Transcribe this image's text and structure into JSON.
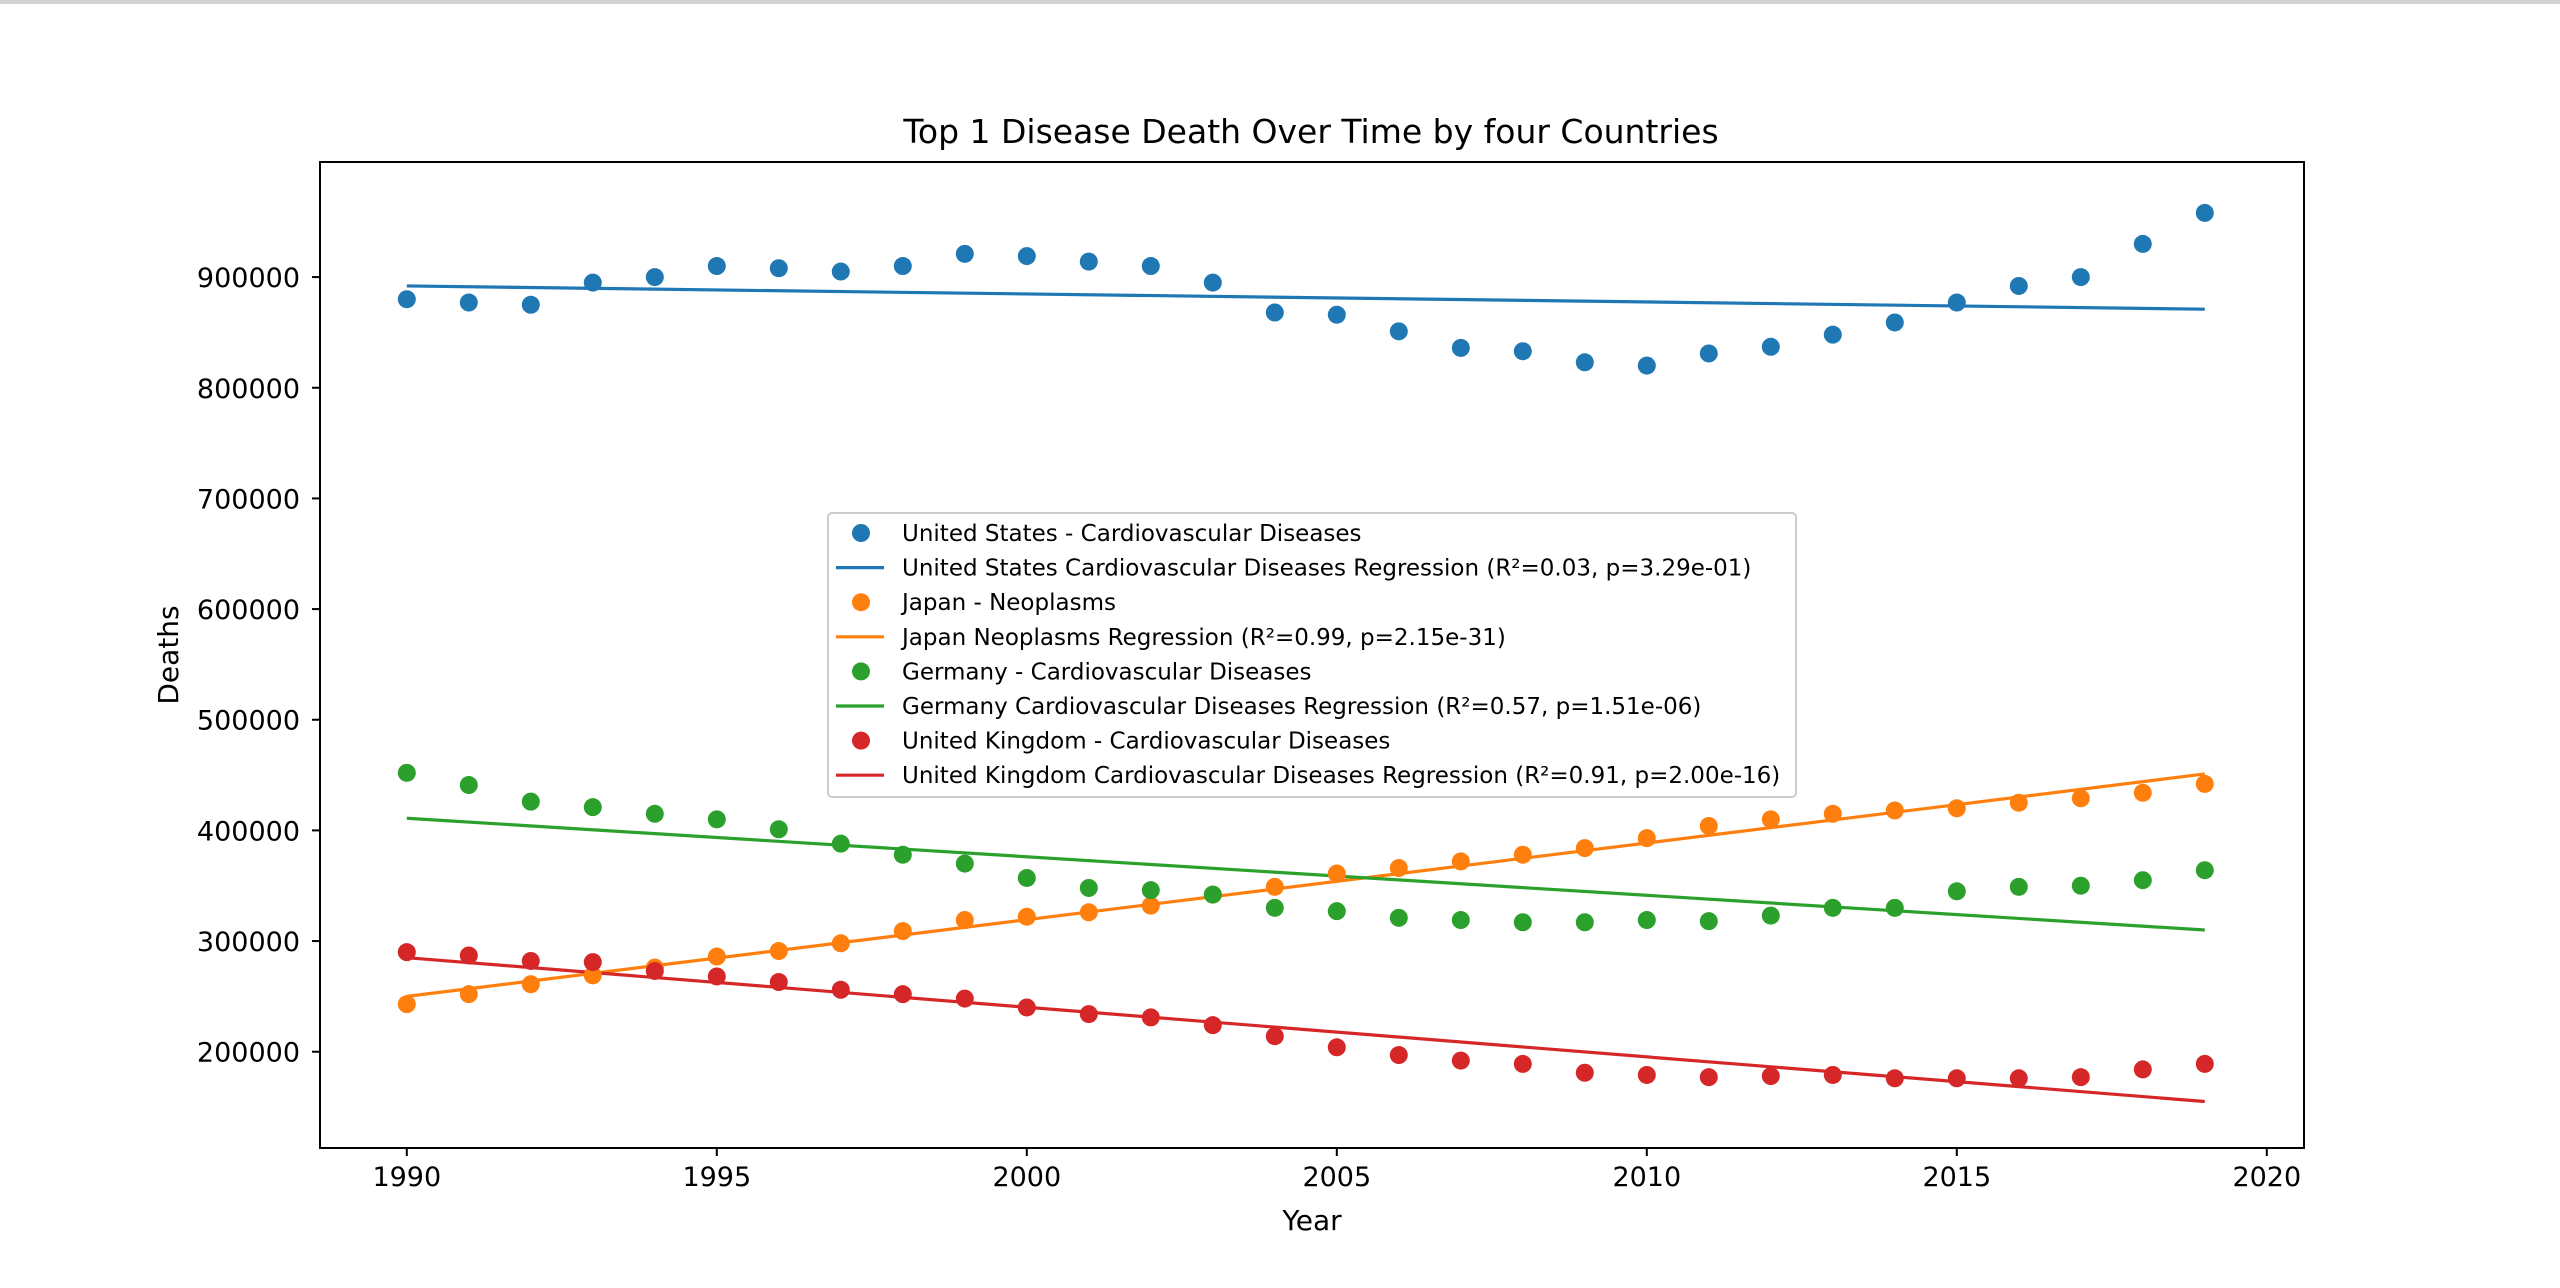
{
  "chart_data": {
    "type": "scatter",
    "title": "Top 1 Disease Death Over Time by four Countries",
    "xlabel": "Year",
    "ylabel": "Deaths",
    "xlim": [
      1988.6,
      2020.6
    ],
    "ylim": [
      113000,
      1004000
    ],
    "xticks": [
      1990,
      1995,
      2000,
      2005,
      2010,
      2015,
      2020
    ],
    "yticks": [
      200000,
      300000,
      400000,
      500000,
      600000,
      700000,
      800000,
      900000
    ],
    "grid": false,
    "legend_position": "center",
    "x": [
      1990,
      1991,
      1992,
      1993,
      1994,
      1995,
      1996,
      1997,
      1998,
      1999,
      2000,
      2001,
      2002,
      2003,
      2004,
      2005,
      2006,
      2007,
      2008,
      2009,
      2010,
      2011,
      2012,
      2013,
      2014,
      2015,
      2016,
      2017,
      2018,
      2019
    ],
    "series": [
      {
        "name": "United States - Cardiovascular Diseases",
        "regression_name": "United States Cardiovascular Diseases Regression (R²=0.03, p=3.29e-01)",
        "color": "#1f77b4",
        "values": [
          880000,
          877000,
          875000,
          895000,
          900000,
          910000,
          908000,
          905000,
          910000,
          921000,
          919000,
          914000,
          910000,
          895000,
          868000,
          866000,
          851000,
          836000,
          833000,
          823000,
          820000,
          831000,
          837000,
          848000,
          859000,
          877000,
          892000,
          900000,
          930000,
          958000
        ],
        "regression": [
          892000,
          871000
        ]
      },
      {
        "name": "Japan - Neoplasms",
        "regression_name": "Japan Neoplasms Regression (R²=0.99, p=2.15e-31)",
        "color": "#ff7f0e",
        "values": [
          243000,
          252000,
          261000,
          269000,
          276000,
          286000,
          291000,
          298000,
          309000,
          319000,
          322000,
          326000,
          332000,
          342000,
          349000,
          361000,
          366000,
          372000,
          378000,
          384000,
          393000,
          404000,
          410000,
          415000,
          418000,
          420000,
          425000,
          429000,
          434000,
          442000
        ],
        "regression": [
          250000,
          451000
        ]
      },
      {
        "name": "Germany - Cardiovascular Diseases",
        "regression_name": "Germany Cardiovascular Diseases Regression (R²=0.57, p=1.51e-06)",
        "color": "#2ca02c",
        "values": [
          452000,
          441000,
          426000,
          421000,
          415000,
          410000,
          401000,
          388000,
          378000,
          370000,
          357000,
          348000,
          346000,
          342000,
          330000,
          327000,
          321000,
          319000,
          317000,
          317000,
          319000,
          318000,
          323000,
          330000,
          330000,
          345000,
          349000,
          350000,
          355000,
          364000
        ],
        "regression": [
          411000,
          310000
        ]
      },
      {
        "name": "United Kingdom - Cardiovascular Diseases",
        "regression_name": "United Kingdom Cardiovascular Diseases Regression (R²=0.91, p=2.00e-16)",
        "color": "#d62728",
        "values": [
          290000,
          287000,
          282000,
          281000,
          273000,
          268000,
          263000,
          256000,
          252000,
          248000,
          240000,
          234000,
          231000,
          224000,
          214000,
          204000,
          197000,
          192000,
          189000,
          181000,
          179000,
          177000,
          178000,
          179000,
          176000,
          176000,
          176000,
          177000,
          184000,
          189000
        ],
        "regression": [
          285000,
          155000
        ]
      }
    ]
  }
}
